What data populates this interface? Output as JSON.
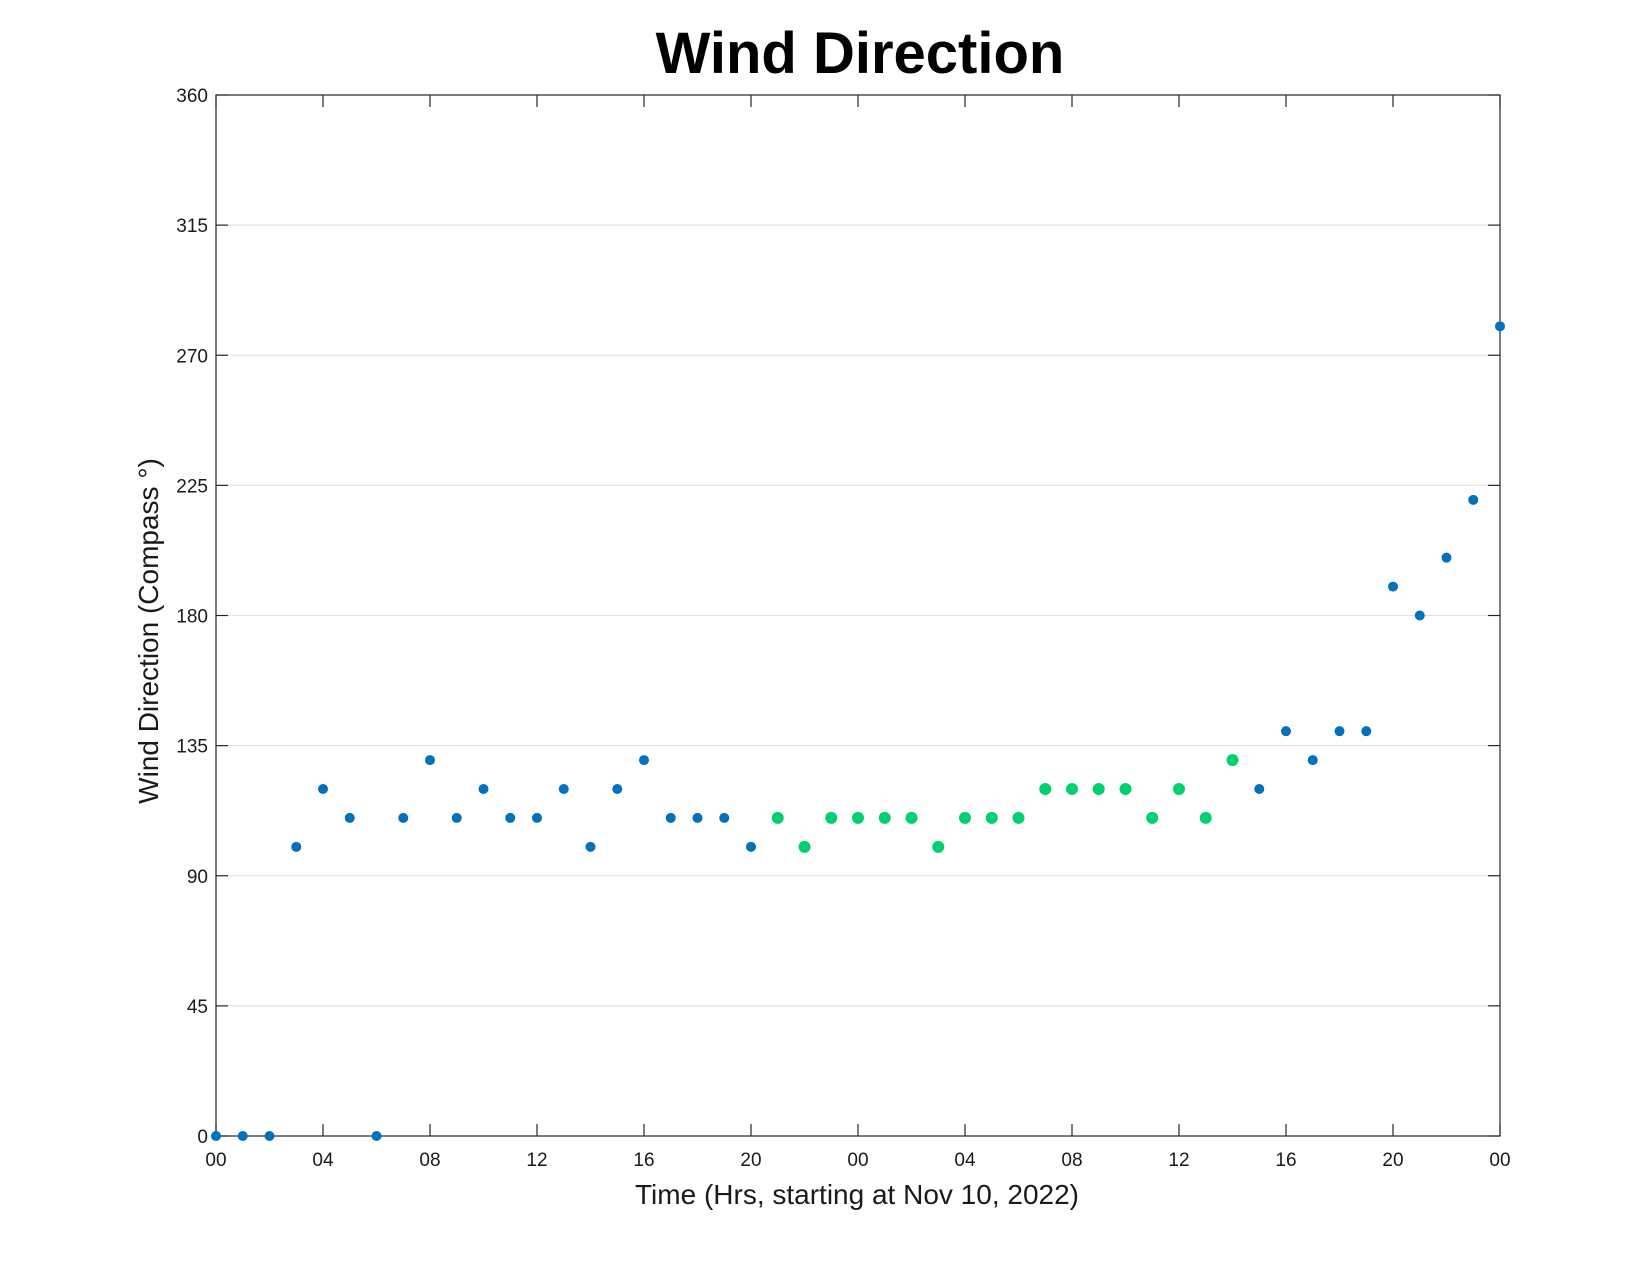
{
  "colors": {
    "base_series": "#0072BD",
    "highlight_series": "#00D070"
  },
  "chart_data": {
    "type": "scatter",
    "title": "Wind Direction",
    "xlabel": "Time (Hrs, starting at Nov 10, 2022)",
    "ylabel": "Wind Direction (Compass °)",
    "xlim": [
      0,
      48
    ],
    "ylim": [
      0,
      360
    ],
    "x_ticks": [
      0,
      4,
      8,
      12,
      16,
      20,
      24,
      28,
      32,
      36,
      40,
      44,
      48
    ],
    "x_tick_labels": [
      "00",
      "04",
      "08",
      "12",
      "16",
      "20",
      "00",
      "04",
      "08",
      "12",
      "16",
      "20",
      "00"
    ],
    "y_ticks": [
      0,
      45,
      90,
      135,
      180,
      225,
      270,
      315,
      360
    ],
    "y_tick_labels": [
      "0",
      "45",
      "90",
      "135",
      "180",
      "225",
      "270",
      "315",
      "360"
    ],
    "grid": "y",
    "series": [
      {
        "color": "#0072BD",
        "x": [
          0,
          1,
          2,
          3,
          4,
          5,
          6,
          7,
          8,
          9,
          10,
          11,
          12,
          13,
          14,
          15,
          16,
          17,
          18,
          19,
          20,
          39,
          40,
          41,
          42,
          43,
          44,
          45,
          46,
          47,
          48
        ],
        "y": [
          0,
          0,
          0,
          100,
          120,
          110,
          0,
          110,
          130,
          110,
          120,
          110,
          110,
          120,
          100,
          120,
          130,
          110,
          110,
          110,
          100,
          120,
          140,
          130,
          140,
          140,
          190,
          180,
          200,
          220,
          280
        ]
      },
      {
        "color": "#00D070",
        "x": [
          21,
          22,
          23,
          24,
          25,
          26,
          27,
          28,
          29,
          30,
          31,
          32,
          33,
          34,
          35,
          36,
          37,
          38
        ],
        "y": [
          110,
          100,
          110,
          110,
          110,
          110,
          100,
          110,
          110,
          110,
          120,
          120,
          120,
          120,
          110,
          120,
          110,
          130
        ]
      }
    ]
  }
}
